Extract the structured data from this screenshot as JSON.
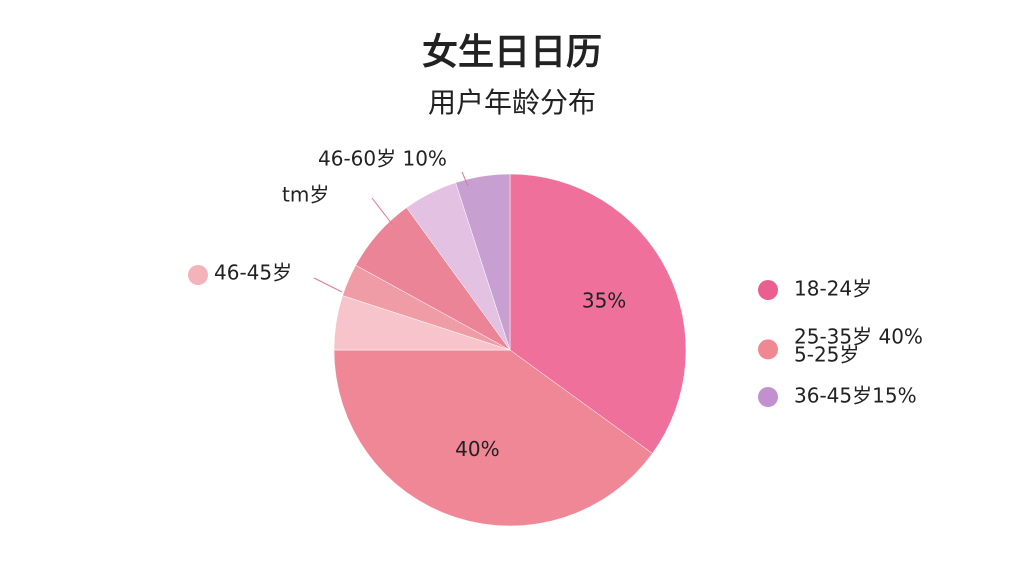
{
  "chart_data": {
    "type": "pie",
    "title": "女生日日历",
    "subtitle": "用户年龄分布",
    "values": [
      35,
      40,
      5,
      3,
      7,
      5,
      5
    ],
    "value_labels": [
      "35%",
      "40%",
      null,
      null,
      null,
      null,
      null
    ],
    "colors": [
      "#f0709c",
      "#ef8797",
      "#f6c4ca",
      "#ef9ca6",
      "#eb8496",
      "#e3c1e2",
      "#c79fd0"
    ],
    "annotations": [
      {
        "text": "46-60岁 10%"
      },
      {
        "text": "tm岁"
      },
      {
        "text": "46-45岁",
        "color": "#f4b3bb"
      }
    ],
    "legend": [
      {
        "lines": [
          "18-24岁"
        ],
        "color": "#ea5f8e"
      },
      {
        "lines": [
          "25-35岁 40%",
          "5-25岁"
        ],
        "color": "#ef8891"
      },
      {
        "lines": [
          "36-45岁15%"
        ],
        "color": "#c390cf"
      }
    ]
  }
}
